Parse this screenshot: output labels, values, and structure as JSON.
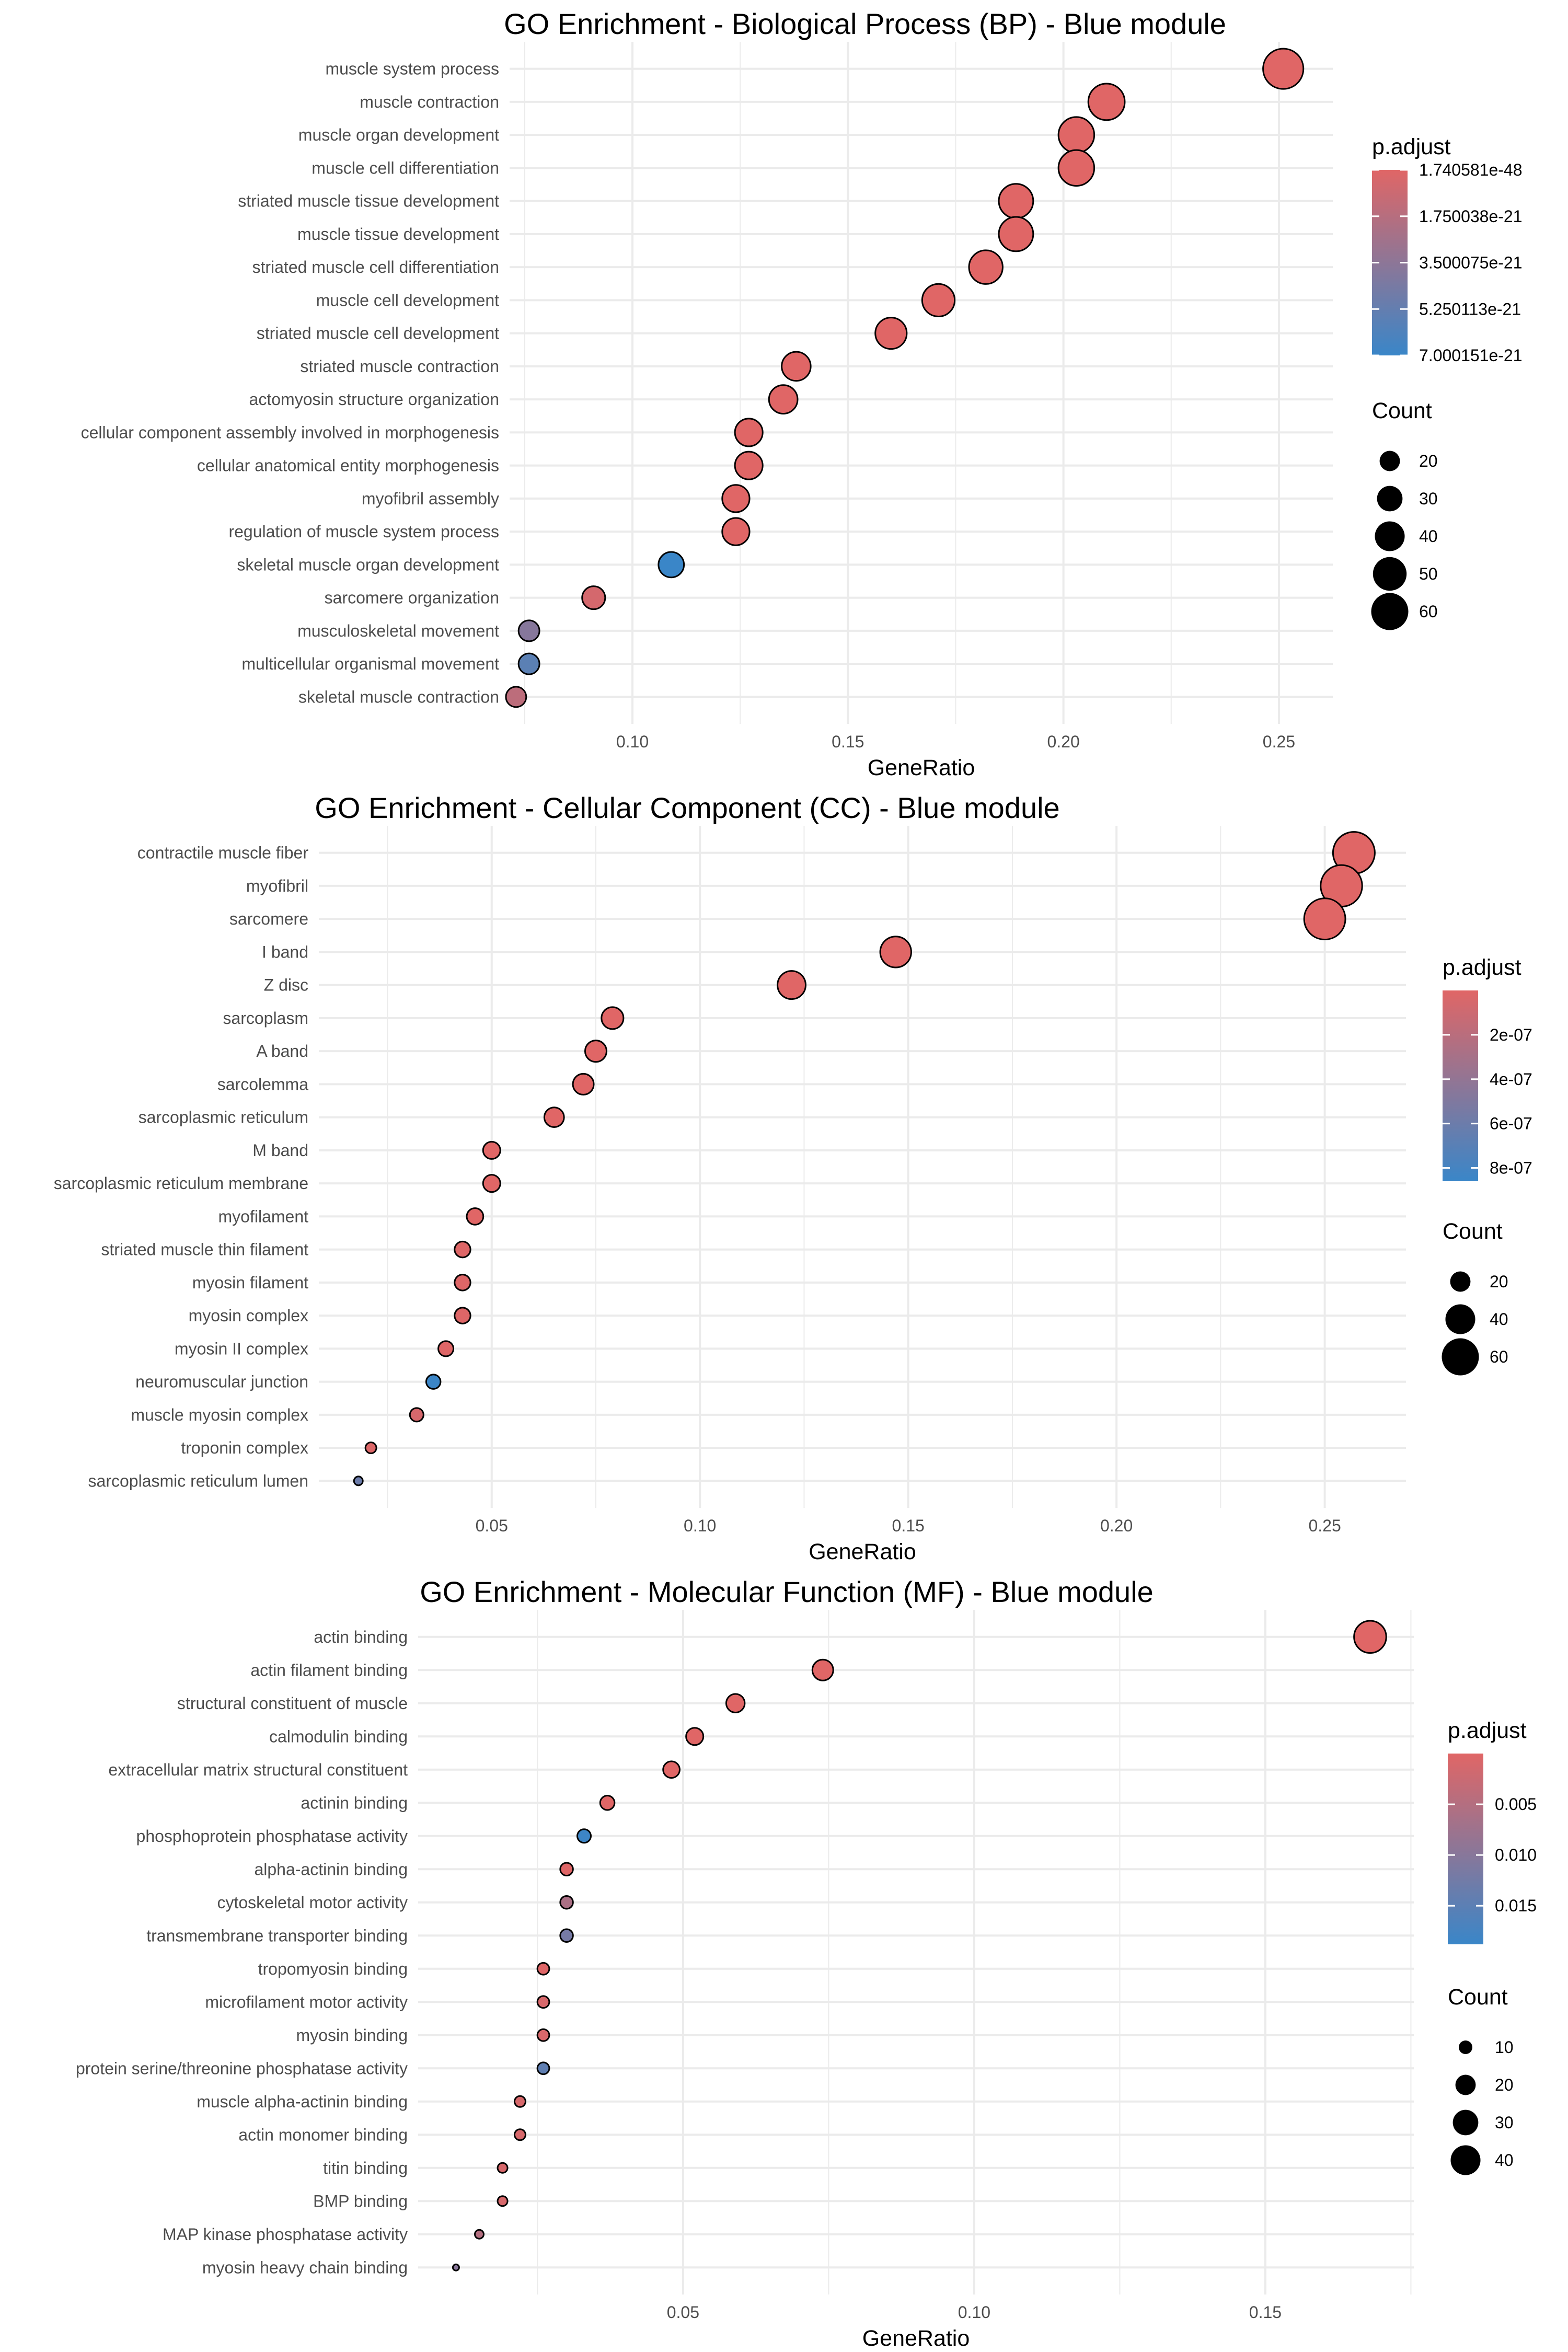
{
  "chart_data": [
    {
      "type": "scatter",
      "title": "GO Enrichment - Biological Process (BP) - Blue module",
      "xlabel": "GeneRatio",
      "xlim": [
        0.0715,
        0.2625
      ],
      "x_ticks": [
        0.1,
        0.15,
        0.2,
        0.25
      ],
      "x_tick_labels": [
        "0.10",
        "0.15",
        "0.20",
        "0.25"
      ],
      "grid": true,
      "color_legend": {
        "title": "p.adjust",
        "ticks": [
          1.740581e-48,
          1.750038e-21,
          3.500075e-21,
          5.250113e-21,
          7.000151e-21
        ],
        "tick_labels": [
          "1.740581e-48",
          "1.750038e-21",
          "3.500075e-21",
          "5.250113e-21",
          "7.000151e-21"
        ],
        "low_color": "#E06666",
        "high_color": "#3A86C8",
        "range": [
          0,
          7.000151e-21
        ]
      },
      "size_legend": {
        "title": "Count",
        "values": [
          20,
          30,
          40,
          50,
          60
        ],
        "labels": [
          "20",
          "30",
          "40",
          "50",
          "60"
        ]
      },
      "legend_placement": "right",
      "terms": [
        {
          "label": "muscle system process",
          "x": 0.251,
          "count": 70,
          "p_adjust": 1.7e-48
        },
        {
          "label": "muscle contraction",
          "x": 0.21,
          "count": 58,
          "p_adjust": 1e-30
        },
        {
          "label": "muscle organ development",
          "x": 0.203,
          "count": 56,
          "p_adjust": 1e-30
        },
        {
          "label": "muscle cell differentiation",
          "x": 0.203,
          "count": 56,
          "p_adjust": 1e-30
        },
        {
          "label": "striated muscle tissue development",
          "x": 0.189,
          "count": 52,
          "p_adjust": 1e-30
        },
        {
          "label": "muscle tissue development",
          "x": 0.189,
          "count": 52,
          "p_adjust": 1e-30
        },
        {
          "label": "striated muscle cell differentiation",
          "x": 0.182,
          "count": 50,
          "p_adjust": 1e-30
        },
        {
          "label": "muscle cell development",
          "x": 0.171,
          "count": 47,
          "p_adjust": 1e-30
        },
        {
          "label": "striated muscle cell development",
          "x": 0.16,
          "count": 44,
          "p_adjust": 1e-30
        },
        {
          "label": "striated muscle contraction",
          "x": 0.138,
          "count": 38,
          "p_adjust": 1e-30
        },
        {
          "label": "actomyosin structure organization",
          "x": 0.135,
          "count": 37,
          "p_adjust": 1e-30
        },
        {
          "label": "cellular component assembly involved in morphogenesis",
          "x": 0.127,
          "count": 35,
          "p_adjust": 1e-30
        },
        {
          "label": "cellular anatomical entity morphogenesis",
          "x": 0.127,
          "count": 35,
          "p_adjust": 1e-30
        },
        {
          "label": "myofibril assembly",
          "x": 0.124,
          "count": 34,
          "p_adjust": 1e-30
        },
        {
          "label": "regulation of muscle system process",
          "x": 0.124,
          "count": 34,
          "p_adjust": 1e-30
        },
        {
          "label": "skeletal muscle organ development",
          "x": 0.109,
          "count": 30,
          "p_adjust": 7e-21
        },
        {
          "label": "sarcomere organization",
          "x": 0.091,
          "count": 25,
          "p_adjust": 5e-22
        },
        {
          "label": "musculoskeletal movement",
          "x": 0.076,
          "count": 21,
          "p_adjust": 3.8e-21
        },
        {
          "label": "multicellular organismal movement",
          "x": 0.076,
          "count": 21,
          "p_adjust": 5.6e-21
        },
        {
          "label": "skeletal muscle contraction",
          "x": 0.073,
          "count": 20,
          "p_adjust": 1.5e-21
        }
      ]
    },
    {
      "type": "scatter",
      "title": "GO Enrichment - Cellular Component (CC) - Blue module",
      "xlabel": "GeneRatio",
      "xlim": [
        0.0085,
        0.2695
      ],
      "x_ticks": [
        0.05,
        0.1,
        0.15,
        0.2,
        0.25
      ],
      "x_tick_labels": [
        "0.05",
        "0.10",
        "0.15",
        "0.20",
        "0.25"
      ],
      "grid": true,
      "color_legend": {
        "title": "p.adjust",
        "ticks": [
          2e-07,
          4e-07,
          6e-07,
          8e-07
        ],
        "tick_labels": [
          "2e-07",
          "4e-07",
          "6e-07",
          "8e-07"
        ],
        "low_color": "#E06666",
        "high_color": "#3A86C8",
        "range": [
          0,
          8.6e-07
        ]
      },
      "size_legend": {
        "title": "Count",
        "values": [
          20,
          40,
          60
        ],
        "labels": [
          "20",
          "40",
          "60"
        ]
      },
      "legend_placement": "right",
      "terms": [
        {
          "label": "contractile muscle fiber",
          "x": 0.257,
          "count": 75,
          "p_adjust": 1e-40
        },
        {
          "label": "myofibril",
          "x": 0.254,
          "count": 74,
          "p_adjust": 1e-40
        },
        {
          "label": "sarcomere",
          "x": 0.25,
          "count": 73,
          "p_adjust": 1e-40
        },
        {
          "label": "I band",
          "x": 0.147,
          "count": 43,
          "p_adjust": 1e-25
        },
        {
          "label": "Z disc",
          "x": 0.122,
          "count": 36,
          "p_adjust": 1e-20
        },
        {
          "label": "sarcoplasm",
          "x": 0.079,
          "count": 23,
          "p_adjust": 1e-12
        },
        {
          "label": "A band",
          "x": 0.075,
          "count": 22,
          "p_adjust": 1e-12
        },
        {
          "label": "sarcolemma",
          "x": 0.072,
          "count": 21,
          "p_adjust": 1e-12
        },
        {
          "label": "sarcoplasmic reticulum",
          "x": 0.065,
          "count": 19,
          "p_adjust": 1e-10
        },
        {
          "label": "M band",
          "x": 0.05,
          "count": 15,
          "p_adjust": 1e-09
        },
        {
          "label": "sarcoplasmic reticulum membrane",
          "x": 0.05,
          "count": 15,
          "p_adjust": 1e-09
        },
        {
          "label": "myofilament",
          "x": 0.046,
          "count": 14,
          "p_adjust": 1e-09
        },
        {
          "label": "striated muscle thin filament",
          "x": 0.043,
          "count": 13,
          "p_adjust": 1e-08
        },
        {
          "label": "myosin filament",
          "x": 0.043,
          "count": 13,
          "p_adjust": 1e-08
        },
        {
          "label": "myosin complex",
          "x": 0.043,
          "count": 13,
          "p_adjust": 1e-08
        },
        {
          "label": "myosin II complex",
          "x": 0.039,
          "count": 12,
          "p_adjust": 1e-08
        },
        {
          "label": "neuromuscular junction",
          "x": 0.036,
          "count": 11,
          "p_adjust": 8.5e-07
        },
        {
          "label": "muscle myosin complex",
          "x": 0.032,
          "count": 10,
          "p_adjust": 5e-08
        },
        {
          "label": "troponin complex",
          "x": 0.021,
          "count": 7,
          "p_adjust": 2e-08
        },
        {
          "label": "sarcoplasmic reticulum lumen",
          "x": 0.018,
          "count": 5,
          "p_adjust": 6e-07
        }
      ]
    },
    {
      "type": "scatter",
      "title": "GO Enrichment - Molecular Function (MF) - Blue module",
      "xlabel": "GeneRatio",
      "xlim": [
        0.0045,
        0.1755
      ],
      "x_ticks": [
        0.05,
        0.1,
        0.15
      ],
      "x_tick_labels": [
        "0.05",
        "0.10",
        "0.15"
      ],
      "grid": true,
      "color_legend": {
        "title": "p.adjust",
        "ticks": [
          0.005,
          0.01,
          0.015
        ],
        "tick_labels": [
          "0.005",
          "0.010",
          "0.015"
        ],
        "low_color": "#E06666",
        "high_color": "#3A86C8",
        "range": [
          0,
          0.0188
        ]
      },
      "size_legend": {
        "title": "Count",
        "values": [
          10,
          20,
          30,
          40
        ],
        "labels": [
          "10",
          "20",
          "30",
          "40"
        ]
      },
      "legend_placement": "right",
      "terms": [
        {
          "label": "actin binding",
          "x": 0.168,
          "count": 46,
          "p_adjust": 1e-20
        },
        {
          "label": "actin filament binding",
          "x": 0.074,
          "count": 21,
          "p_adjust": 1e-10
        },
        {
          "label": "structural constituent of muscle",
          "x": 0.059,
          "count": 17,
          "p_adjust": 1e-10
        },
        {
          "label": "calmodulin binding",
          "x": 0.052,
          "count": 15,
          "p_adjust": 1e-06
        },
        {
          "label": "extracellular matrix structural constituent",
          "x": 0.048,
          "count": 14,
          "p_adjust": 1e-05
        },
        {
          "label": "actinin binding",
          "x": 0.037,
          "count": 11,
          "p_adjust": 1e-05
        },
        {
          "label": "phosphoprotein phosphatase activity",
          "x": 0.033,
          "count": 10,
          "p_adjust": 0.0185
        },
        {
          "label": "alpha-actinin binding",
          "x": 0.03,
          "count": 9,
          "p_adjust": 0.0001
        },
        {
          "label": "cytoskeletal motor activity",
          "x": 0.03,
          "count": 9,
          "p_adjust": 0.006
        },
        {
          "label": "transmembrane transporter binding",
          "x": 0.03,
          "count": 9,
          "p_adjust": 0.012
        },
        {
          "label": "tropomyosin binding",
          "x": 0.026,
          "count": 8,
          "p_adjust": 0.0001
        },
        {
          "label": "microfilament motor activity",
          "x": 0.026,
          "count": 8,
          "p_adjust": 0.001
        },
        {
          "label": "myosin binding",
          "x": 0.026,
          "count": 8,
          "p_adjust": 0.001
        },
        {
          "label": "protein serine/threonine phosphatase activity",
          "x": 0.026,
          "count": 8,
          "p_adjust": 0.0145
        },
        {
          "label": "muscle alpha-actinin binding",
          "x": 0.022,
          "count": 7,
          "p_adjust": 0.001
        },
        {
          "label": "actin monomer binding",
          "x": 0.022,
          "count": 7,
          "p_adjust": 0.001
        },
        {
          "label": "titin binding",
          "x": 0.019,
          "count": 6,
          "p_adjust": 0.001
        },
        {
          "label": "BMP binding",
          "x": 0.019,
          "count": 6,
          "p_adjust": 0.001
        },
        {
          "label": "MAP kinase phosphatase activity",
          "x": 0.015,
          "count": 5,
          "p_adjust": 0.005
        },
        {
          "label": "myosin heavy chain binding",
          "x": 0.011,
          "count": 3,
          "p_adjust": 0.01
        }
      ]
    }
  ]
}
